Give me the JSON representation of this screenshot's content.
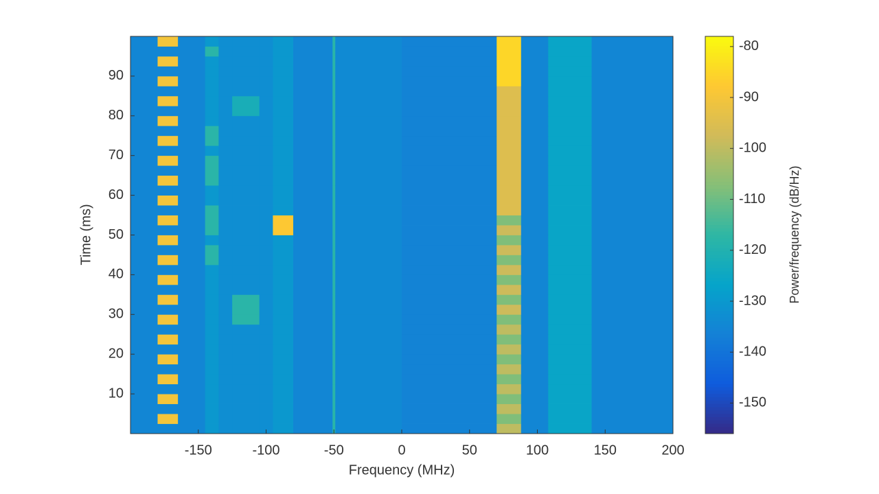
{
  "chart_data": {
    "type": "heatmap",
    "xlabel": "Frequency (MHz)",
    "ylabel": "Time (ms)",
    "colorbar_label": "Power/frequency (dB/Hz)",
    "colormap": "parula",
    "xlim": [
      -200,
      200
    ],
    "xticks": [
      -150,
      -100,
      -50,
      0,
      50,
      100,
      150,
      200
    ],
    "ylim": [
      0,
      100
    ],
    "yticks": [
      10,
      20,
      30,
      40,
      50,
      60,
      70,
      80,
      90
    ],
    "clim": [
      -156,
      -78
    ],
    "cticks": [
      -150,
      -140,
      -130,
      -120,
      -110,
      -100,
      -90,
      -80
    ],
    "x": [
      -200,
      -180,
      -165,
      -145,
      -135,
      -125,
      -105,
      -95,
      -80,
      -51,
      -49,
      0,
      70,
      88,
      108,
      140,
      200
    ],
    "y": [
      0,
      2.5,
      5,
      7.5,
      10,
      12.5,
      15,
      17.5,
      20,
      22.5,
      25,
      27.5,
      30,
      32.5,
      35,
      37.5,
      40,
      42.5,
      45,
      47.5,
      50,
      52.5,
      55,
      57.5,
      60,
      62.5,
      65,
      67.5,
      70,
      72.5,
      75,
      77.5,
      80,
      82.5,
      85,
      87.5,
      90,
      92.5,
      95,
      97.5,
      100
    ],
    "z": [
      [
        -135,
        -135,
        -135,
        -130,
        -133,
        -133,
        -133,
        -130,
        -135,
        -118,
        -134,
        -136,
        -100,
        -135,
        -126,
        -135
      ],
      [
        -135,
        -90,
        -135,
        -130,
        -133,
        -133,
        -133,
        -130,
        -135,
        -118,
        -134,
        -136,
        -108,
        -135,
        -126,
        -135
      ],
      [
        -135,
        -135,
        -135,
        -130,
        -133,
        -133,
        -133,
        -130,
        -135,
        -118,
        -134,
        -136,
        -100,
        -135,
        -126,
        -135
      ],
      [
        -135,
        -90,
        -135,
        -130,
        -133,
        -133,
        -133,
        -130,
        -135,
        -118,
        -134,
        -136,
        -108,
        -135,
        -126,
        -135
      ],
      [
        -135,
        -135,
        -135,
        -130,
        -133,
        -133,
        -133,
        -130,
        -135,
        -118,
        -134,
        -136,
        -100,
        -135,
        -126,
        -135
      ],
      [
        -135,
        -90,
        -135,
        -130,
        -133,
        -133,
        -133,
        -130,
        -135,
        -118,
        -134,
        -136,
        -108,
        -135,
        -126,
        -135
      ],
      [
        -135,
        -135,
        -135,
        -130,
        -133,
        -133,
        -133,
        -130,
        -135,
        -118,
        -134,
        -136,
        -100,
        -135,
        -126,
        -135
      ],
      [
        -135,
        -90,
        -135,
        -130,
        -133,
        -133,
        -133,
        -130,
        -135,
        -118,
        -134,
        -136,
        -108,
        -135,
        -126,
        -135
      ],
      [
        -135,
        -135,
        -135,
        -130,
        -133,
        -133,
        -133,
        -130,
        -135,
        -118,
        -134,
        -136,
        -100,
        -135,
        -126,
        -135
      ],
      [
        -135,
        -90,
        -135,
        -130,
        -133,
        -133,
        -133,
        -130,
        -135,
        -118,
        -134,
        -136,
        -108,
        -135,
        -126,
        -135
      ],
      [
        -135,
        -135,
        -135,
        -130,
        -133,
        -133,
        -133,
        -130,
        -135,
        -118,
        -134,
        -136,
        -100,
        -135,
        -126,
        -135
      ],
      [
        -135,
        -90,
        -135,
        -130,
        -133,
        -118,
        -133,
        -130,
        -135,
        -118,
        -134,
        -136,
        -108,
        -135,
        -126,
        -135
      ],
      [
        -135,
        -135,
        -135,
        -130,
        -133,
        -118,
        -133,
        -130,
        -135,
        -118,
        -134,
        -136,
        -98,
        -135,
        -126,
        -135
      ],
      [
        -135,
        -90,
        -135,
        -130,
        -133,
        -118,
        -133,
        -130,
        -135,
        -118,
        -134,
        -136,
        -108,
        -135,
        -126,
        -135
      ],
      [
        -135,
        -135,
        -135,
        -130,
        -133,
        -133,
        -133,
        -130,
        -135,
        -118,
        -134,
        -136,
        -98,
        -135,
        -126,
        -135
      ],
      [
        -135,
        -90,
        -135,
        -130,
        -133,
        -133,
        -133,
        -130,
        -135,
        -118,
        -134,
        -136,
        -108,
        -135,
        -126,
        -135
      ],
      [
        -135,
        -135,
        -135,
        -130,
        -133,
        -133,
        -133,
        -130,
        -135,
        -118,
        -134,
        -136,
        -98,
        -135,
        -126,
        -135
      ],
      [
        -135,
        -90,
        -135,
        -118,
        -133,
        -133,
        -133,
        -130,
        -135,
        -118,
        -134,
        -136,
        -108,
        -135,
        -126,
        -135
      ],
      [
        -135,
        -135,
        -135,
        -118,
        -133,
        -133,
        -133,
        -130,
        -135,
        -118,
        -134,
        -136,
        -98,
        -135,
        -126,
        -135
      ],
      [
        -135,
        -90,
        -135,
        -130,
        -133,
        -133,
        -133,
        -130,
        -135,
        -118,
        -134,
        -136,
        -108,
        -135,
        -126,
        -135
      ],
      [
        -135,
        -135,
        -135,
        -118,
        -133,
        -133,
        -133,
        -88,
        -135,
        -118,
        -134,
        -136,
        -98,
        -135,
        -126,
        -135
      ],
      [
        -135,
        -90,
        -135,
        -118,
        -133,
        -133,
        -133,
        -88,
        -135,
        -118,
        -134,
        -136,
        -108,
        -135,
        -126,
        -135
      ],
      [
        -135,
        -135,
        -135,
        -118,
        -133,
        -133,
        -133,
        -130,
        -135,
        -118,
        -134,
        -136,
        -95,
        -135,
        -126,
        -135
      ],
      [
        -135,
        -90,
        -135,
        -130,
        -133,
        -133,
        -133,
        -130,
        -135,
        -118,
        -134,
        -136,
        -95,
        -135,
        -126,
        -135
      ],
      [
        -135,
        -135,
        -135,
        -130,
        -133,
        -133,
        -133,
        -130,
        -135,
        -118,
        -134,
        -136,
        -95,
        -135,
        -126,
        -135
      ],
      [
        -135,
        -90,
        -135,
        -118,
        -133,
        -133,
        -133,
        -130,
        -135,
        -118,
        -134,
        -136,
        -95,
        -135,
        -126,
        -135
      ],
      [
        -135,
        -135,
        -135,
        -118,
        -133,
        -133,
        -133,
        -130,
        -135,
        -118,
        -134,
        -136,
        -95,
        -135,
        -126,
        -135
      ],
      [
        -135,
        -90,
        -135,
        -118,
        -133,
        -133,
        -133,
        -130,
        -135,
        -118,
        -134,
        -136,
        -95,
        -135,
        -126,
        -135
      ],
      [
        -135,
        -135,
        -135,
        -130,
        -133,
        -133,
        -133,
        -130,
        -135,
        -118,
        -134,
        -136,
        -95,
        -135,
        -126,
        -135
      ],
      [
        -135,
        -90,
        -135,
        -118,
        -133,
        -133,
        -133,
        -130,
        -135,
        -118,
        -134,
        -136,
        -95,
        -135,
        -126,
        -135
      ],
      [
        -135,
        -135,
        -135,
        -118,
        -133,
        -133,
        -133,
        -130,
        -135,
        -118,
        -134,
        -136,
        -95,
        -135,
        -126,
        -135
      ],
      [
        -135,
        -90,
        -135,
        -130,
        -133,
        -133,
        -133,
        -130,
        -135,
        -118,
        -134,
        -136,
        -95,
        -135,
        -126,
        -135
      ],
      [
        -135,
        -135,
        -135,
        -130,
        -133,
        -122,
        -133,
        -130,
        -135,
        -118,
        -134,
        -136,
        -95,
        -135,
        -126,
        -135
      ],
      [
        -135,
        -90,
        -135,
        -130,
        -133,
        -122,
        -133,
        -130,
        -135,
        -118,
        -134,
        -136,
        -95,
        -135,
        -126,
        -135
      ],
      [
        -135,
        -135,
        -135,
        -130,
        -133,
        -133,
        -133,
        -130,
        -135,
        -118,
        -134,
        -136,
        -95,
        -135,
        -126,
        -135
      ],
      [
        -135,
        -90,
        -135,
        -130,
        -133,
        -133,
        -133,
        -130,
        -135,
        -118,
        -134,
        -136,
        -85,
        -135,
        -126,
        -135
      ],
      [
        -135,
        -135,
        -135,
        -130,
        -133,
        -133,
        -133,
        -130,
        -135,
        -118,
        -134,
        -136,
        -85,
        -135,
        -126,
        -135
      ],
      [
        -135,
        -90,
        -135,
        -130,
        -133,
        -133,
        -133,
        -130,
        -135,
        -118,
        -134,
        -136,
        -85,
        -135,
        -126,
        -135
      ],
      [
        -135,
        -135,
        -135,
        -118,
        -133,
        -133,
        -133,
        -130,
        -135,
        -118,
        -134,
        -136,
        -85,
        -135,
        -126,
        -135
      ],
      [
        -135,
        -90,
        -135,
        -130,
        -133,
        -133,
        -133,
        -130,
        -135,
        -118,
        -134,
        -136,
        -85,
        -135,
        -126,
        -135
      ]
    ]
  }
}
